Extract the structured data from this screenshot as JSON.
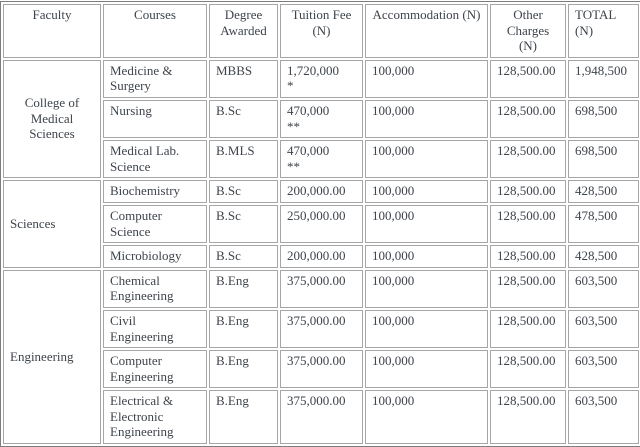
{
  "colors": {
    "text": "#3e444b",
    "outer_border": "#7d7d7d",
    "cell_border": "#a6a6a6",
    "background": "#ffffff"
  },
  "table": {
    "headers": [
      {
        "label": "Faculty"
      },
      {
        "label": "Courses"
      },
      {
        "label": "Degree Awarded"
      },
      {
        "label": "Tuition Fee (N)"
      },
      {
        "label": "Accommodation (N)"
      },
      {
        "label": "Other Charges (N)"
      },
      {
        "label": "TOTAL (N)"
      }
    ],
    "groups": [
      {
        "faculty": "College of Medical Sciences",
        "rows": [
          {
            "course": "Medicine & Surgery",
            "degree": "MBBS",
            "tuition": "1,720,000",
            "tuition_note": "*",
            "accommodation": "100,000",
            "other_charges": "128,500.00",
            "total": "1,948,500"
          },
          {
            "course": "Nursing",
            "degree": "B.Sc",
            "tuition": "470,000",
            "tuition_note": "**",
            "accommodation": "100,000",
            "other_charges": "128,500.00",
            "total": "698,500"
          },
          {
            "course": "Medical Lab. Science",
            "degree": "B.MLS",
            "tuition": "470,000",
            "tuition_note": "**",
            "accommodation": "100,000",
            "other_charges": "128,500.00",
            "total": "698,500"
          }
        ]
      },
      {
        "faculty": "Sciences",
        "rows": [
          {
            "course": "Biochemistry",
            "degree": "B.Sc",
            "tuition": "200,000.00",
            "tuition_note": "",
            "accommodation": "100,000",
            "other_charges": "128,500.00",
            "total": "428,500"
          },
          {
            "course": "Computer Science",
            "degree": "B.Sc",
            "tuition": "250,000.00",
            "tuition_note": "",
            "accommodation": "100,000",
            "other_charges": "128,500.00",
            "total": "478,500"
          },
          {
            "course": "Microbiology",
            "degree": "B.Sc",
            "tuition": "200,000.00",
            "tuition_note": "",
            "accommodation": "100,000",
            "other_charges": "128,500.00",
            "total": "428,500"
          }
        ]
      },
      {
        "faculty": "Engineering",
        "rows": [
          {
            "course": "Chemical Engineering",
            "degree": "B.Eng",
            "tuition": "375,000.00",
            "tuition_note": "",
            "accommodation": "100,000",
            "other_charges": "128,500.00",
            "total": "603,500"
          },
          {
            "course": "Civil Engineering",
            "degree": "B.Eng",
            "tuition": "375,000.00",
            "tuition_note": "",
            "accommodation": "100,000",
            "other_charges": "128,500.00",
            "total": "603,500"
          },
          {
            "course": "Computer Engineering",
            "degree": "B.Eng",
            "tuition": "375,000.00",
            "tuition_note": "",
            "accommodation": "100,000",
            "other_charges": "128,500.00",
            "total": "603,500"
          },
          {
            "course": "Electrical & Electronic Engineering",
            "degree": "B.Eng",
            "tuition": "375,000.00",
            "tuition_note": "",
            "accommodation": "100,000",
            "other_charges": "128,500.00",
            "total": "603,500"
          }
        ]
      }
    ]
  }
}
